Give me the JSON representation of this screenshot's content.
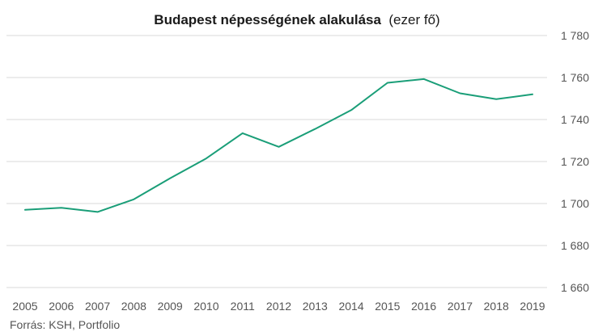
{
  "chart_data": {
    "type": "line",
    "title": "Budapest népességének alakulása",
    "title_unit": "(ezer fő)",
    "x": [
      "2005",
      "2006",
      "2007",
      "2008",
      "2009",
      "2010",
      "2011",
      "2012",
      "2013",
      "2014",
      "2015",
      "2016",
      "2017",
      "2018",
      "2019"
    ],
    "series": [
      {
        "values": [
          1697,
          1698,
          1696,
          1702,
          1712,
          1721.5,
          1733.5,
          1727,
          1735.5,
          1744.5,
          1757.5,
          1759.3,
          1752.5,
          1749.7,
          1752
        ]
      }
    ],
    "y_ticks": [
      1660,
      1680,
      1700,
      1720,
      1740,
      1760,
      1780
    ],
    "y_tick_labels": [
      "1 660",
      "1 680",
      "1 700",
      "1 720",
      "1 740",
      "1 760",
      "1 780"
    ],
    "ylim": [
      1660,
      1780
    ],
    "y_axis_side": "right",
    "grid": true,
    "line_color": "#1a9e78",
    "source": "Forrás: KSH, Portfolio"
  }
}
